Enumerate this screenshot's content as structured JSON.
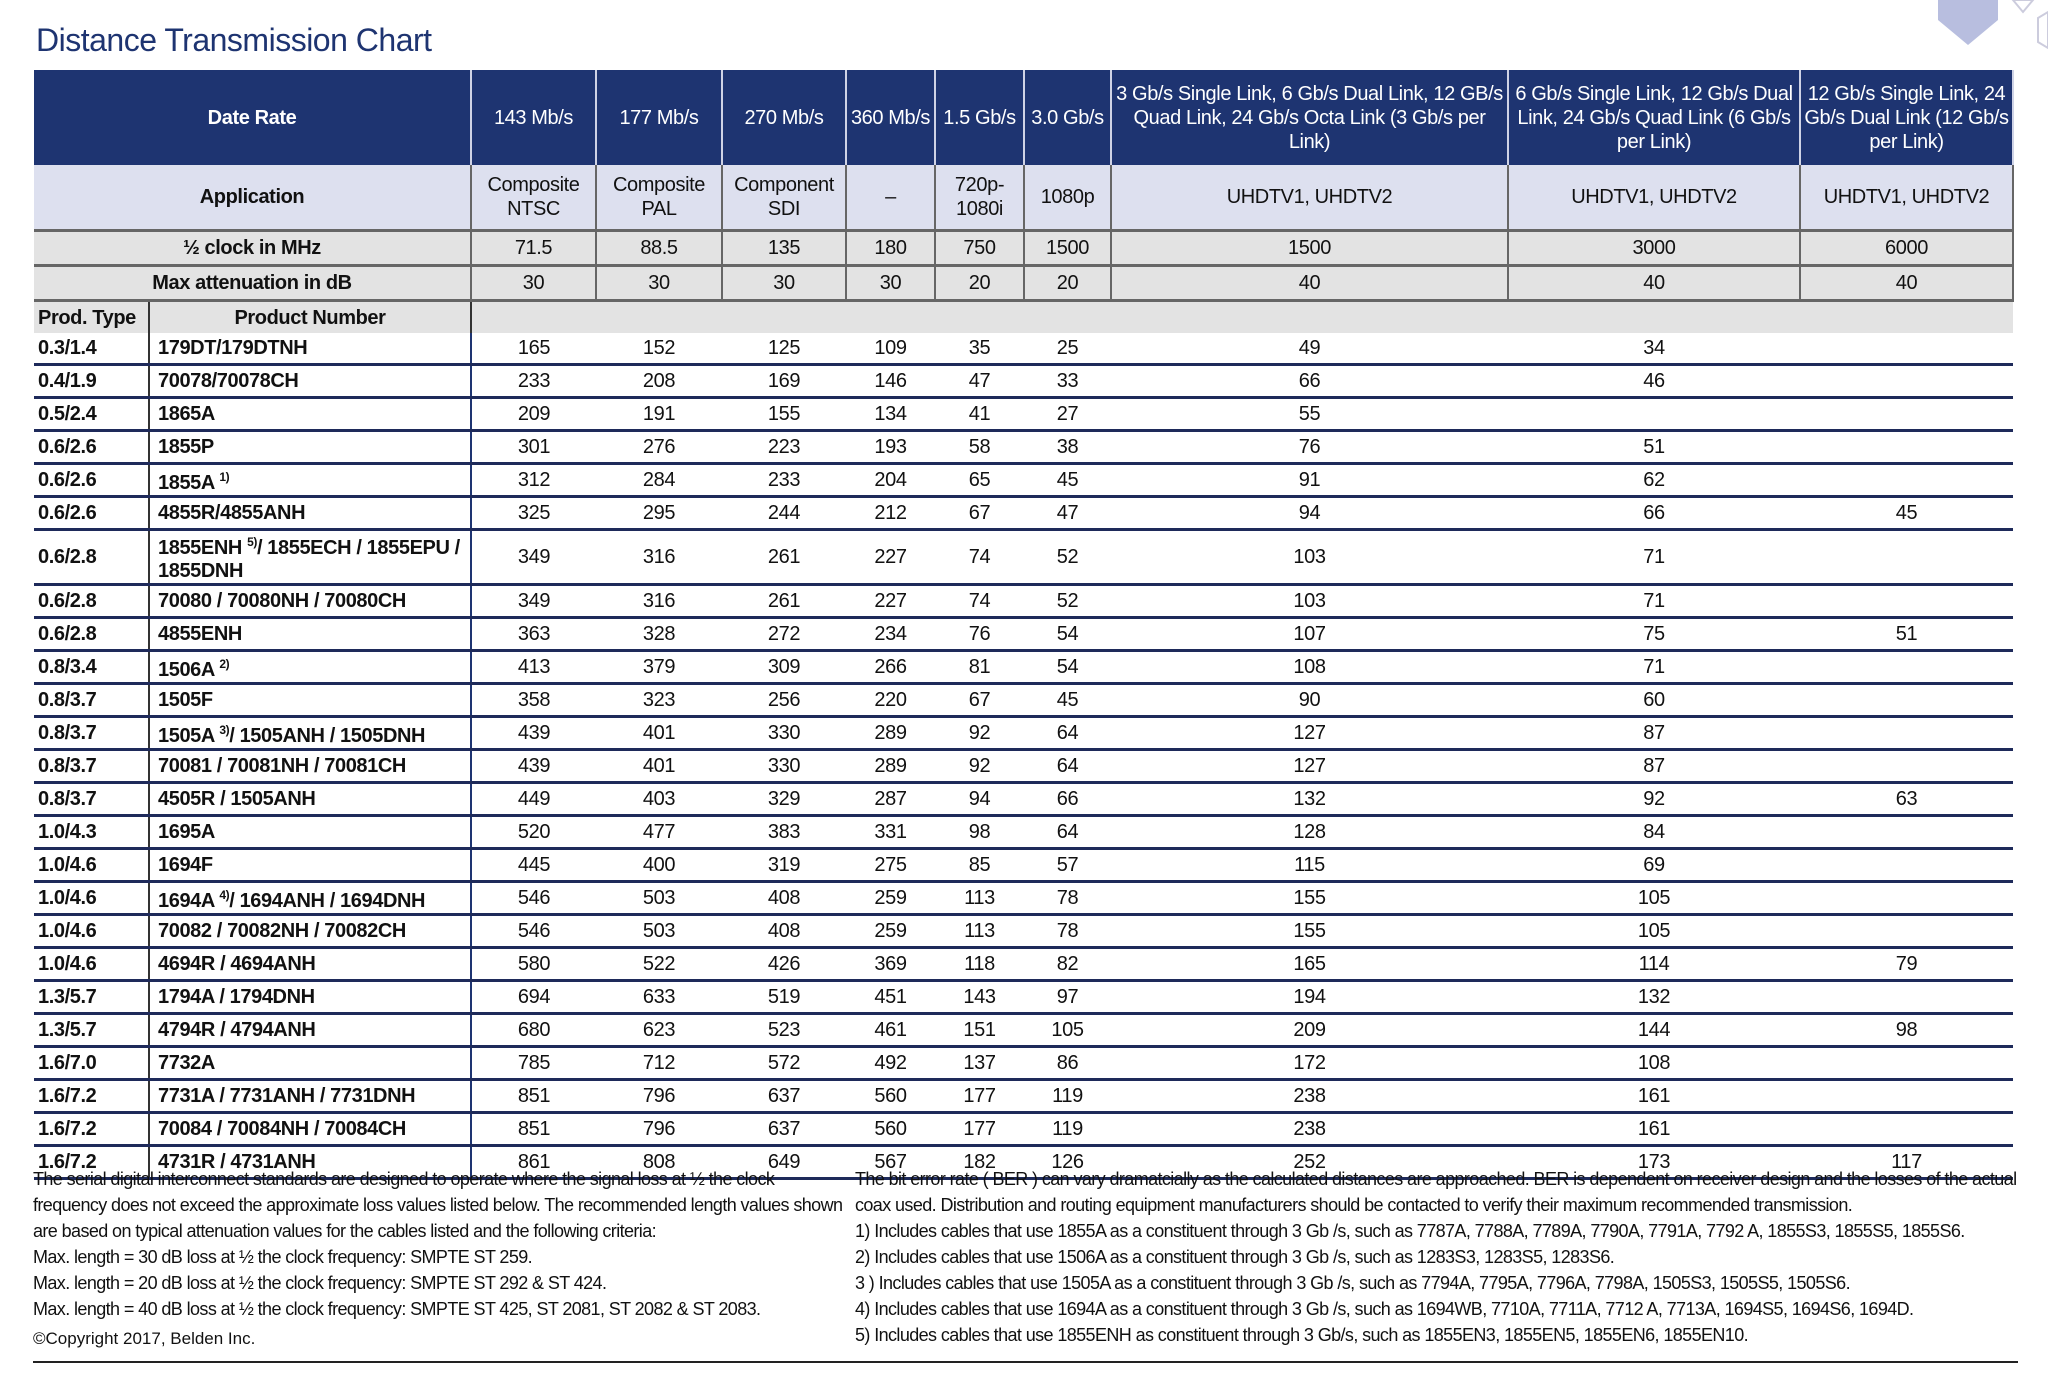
{
  "title": "Distance Transmission Chart",
  "colors": {
    "header_navy": "#1e3471",
    "application_row": "#dde0ef",
    "gray_row": "#e3e3e3"
  },
  "header": {
    "date_rate_label": "Date Rate",
    "rates": [
      "143 Mb/s",
      "177 Mb/s",
      "270 Mb/s",
      "360 Mb/s",
      "1.5 Gb/s",
      "3.0 Gb/s",
      "3 Gb/s Single Link, 6 Gb/s Dual Link, 12 GB/s Quad Link, 24 Gb/s Octa Link (3 Gb/s per Link)",
      "6 Gb/s Single Link, 12 Gb/s Dual Link, 24 Gb/s Quad Link (6 Gb/s per Link)",
      "12 Gb/s Single Link, 24 Gb/s Dual Link (12 Gb/s per Link)"
    ],
    "application_label": "Application",
    "applications": [
      "Composite NTSC",
      "Composite PAL",
      "Component SDI",
      "–",
      "720p-1080i",
      "1080p",
      "UHDTV1, UHDTV2",
      "UHDTV1, UHDTV2",
      "UHDTV1, UHDTV2"
    ],
    "clock_label": "½ clock in MHz",
    "clocks": [
      "71.5",
      "88.5",
      "135",
      "180",
      "750",
      "1500",
      "1500",
      "3000",
      "6000"
    ],
    "attenuation_label": "Max attenuation in dB",
    "attenuations": [
      "30",
      "30",
      "30",
      "30",
      "20",
      "20",
      "40",
      "40",
      "40"
    ],
    "prod_type_label": "Prod. Type",
    "product_number_label": "Product Number"
  },
  "rows": [
    {
      "type": "0.3/1.4",
      "product": "179DT/179DTNH",
      "note": "",
      "product_rest": "",
      "values": [
        "165",
        "152",
        "125",
        "109",
        "35",
        "25",
        "49",
        "34",
        ""
      ]
    },
    {
      "type": "0.4/1.9",
      "product": "70078/70078CH",
      "note": "",
      "product_rest": "",
      "values": [
        "233",
        "208",
        "169",
        "146",
        "47",
        "33",
        "66",
        "46",
        ""
      ]
    },
    {
      "type": "0.5/2.4",
      "product": "1865A",
      "note": "",
      "product_rest": "",
      "values": [
        "209",
        "191",
        "155",
        "134",
        "41",
        "27",
        "55",
        "",
        ""
      ]
    },
    {
      "type": "0.6/2.6",
      "product": "1855P",
      "note": "",
      "product_rest": "",
      "values": [
        "301",
        "276",
        "223",
        "193",
        "58",
        "38",
        "76",
        "51",
        ""
      ]
    },
    {
      "type": "0.6/2.6",
      "product": "1855A",
      "note": "1)",
      "product_rest": "",
      "values": [
        "312",
        "284",
        "233",
        "204",
        "65",
        "45",
        "91",
        "62",
        ""
      ]
    },
    {
      "type": "0.6/2.6",
      "product": "4855R/4855ANH",
      "note": "",
      "product_rest": "",
      "values": [
        "325",
        "295",
        "244",
        "212",
        "67",
        "47",
        "94",
        "66",
        "45"
      ]
    },
    {
      "type": "0.6/2.8",
      "product": "1855ENH",
      "note": "5)",
      "product_rest": "/ 1855ECH / 1855EPU / 1855DNH",
      "tall": true,
      "values": [
        "349",
        "316",
        "261",
        "227",
        "74",
        "52",
        "103",
        "71",
        ""
      ]
    },
    {
      "type": "0.6/2.8",
      "product": "70080 / 70080NH / 70080CH",
      "note": "",
      "product_rest": "",
      "values": [
        "349",
        "316",
        "261",
        "227",
        "74",
        "52",
        "103",
        "71",
        ""
      ]
    },
    {
      "type": "0.6/2.8",
      "product": "4855ENH",
      "note": "",
      "product_rest": "",
      "values": [
        "363",
        "328",
        "272",
        "234",
        "76",
        "54",
        "107",
        "75",
        "51"
      ]
    },
    {
      "type": "0.8/3.4",
      "product": "1506A",
      "note": "2)",
      "product_rest": "",
      "values": [
        "413",
        "379",
        "309",
        "266",
        "81",
        "54",
        "108",
        "71",
        ""
      ]
    },
    {
      "type": "0.8/3.7",
      "product": "1505F",
      "note": "",
      "product_rest": "",
      "values": [
        "358",
        "323",
        "256",
        "220",
        "67",
        "45",
        "90",
        "60",
        ""
      ]
    },
    {
      "type": "0.8/3.7",
      "product": "1505A",
      "note": "3)",
      "product_rest": "/ 1505ANH / 1505DNH",
      "values": [
        "439",
        "401",
        "330",
        "289",
        "92",
        "64",
        "127",
        "87",
        ""
      ]
    },
    {
      "type": "0.8/3.7",
      "product": "70081 / 70081NH / 70081CH",
      "note": "",
      "product_rest": "",
      "values": [
        "439",
        "401",
        "330",
        "289",
        "92",
        "64",
        "127",
        "87",
        ""
      ]
    },
    {
      "type": "0.8/3.7",
      "product": "4505R / 1505ANH",
      "note": "",
      "product_rest": "",
      "values": [
        "449",
        "403",
        "329",
        "287",
        "94",
        "66",
        "132",
        "92",
        "63"
      ]
    },
    {
      "type": "1.0/4.3",
      "product": "1695A",
      "note": "",
      "product_rest": "",
      "values": [
        "520",
        "477",
        "383",
        "331",
        "98",
        "64",
        "128",
        "84",
        ""
      ]
    },
    {
      "type": "1.0/4.6",
      "product": "1694F",
      "note": "",
      "product_rest": "",
      "values": [
        "445",
        "400",
        "319",
        "275",
        "85",
        "57",
        "115",
        "69",
        ""
      ]
    },
    {
      "type": "1.0/4.6",
      "product": "1694A",
      "note": "4)",
      "product_rest": "/ 1694ANH / 1694DNH",
      "values": [
        "546",
        "503",
        "408",
        "259",
        "113",
        "78",
        "155",
        "105",
        ""
      ]
    },
    {
      "type": "1.0/4.6",
      "product": "70082 / 70082NH / 70082CH",
      "note": "",
      "product_rest": "",
      "values": [
        "546",
        "503",
        "408",
        "259",
        "113",
        "78",
        "155",
        "105",
        ""
      ]
    },
    {
      "type": "1.0/4.6",
      "product": "4694R / 4694ANH",
      "note": "",
      "product_rest": "",
      "values": [
        "580",
        "522",
        "426",
        "369",
        "118",
        "82",
        "165",
        "114",
        "79"
      ]
    },
    {
      "type": "1.3/5.7",
      "product": "1794A / 1794DNH",
      "note": "",
      "product_rest": "",
      "values": [
        "694",
        "633",
        "519",
        "451",
        "143",
        "97",
        "194",
        "132",
        ""
      ]
    },
    {
      "type": "1.3/5.7",
      "product": "4794R / 4794ANH",
      "note": "",
      "product_rest": "",
      "values": [
        "680",
        "623",
        "523",
        "461",
        "151",
        "105",
        "209",
        "144",
        "98"
      ]
    },
    {
      "type": "1.6/7.0",
      "product": "7732A",
      "note": "",
      "product_rest": "",
      "values": [
        "785",
        "712",
        "572",
        "492",
        "137",
        "86",
        "172",
        "108",
        ""
      ]
    },
    {
      "type": "1.6/7.2",
      "product": "7731A / 7731ANH / 7731DNH",
      "note": "",
      "product_rest": "",
      "values": [
        "851",
        "796",
        "637",
        "560",
        "177",
        "119",
        "238",
        "161",
        ""
      ]
    },
    {
      "type": "1.6/7.2",
      "product": "70084 / 70084NH / 70084CH",
      "note": "",
      "product_rest": "",
      "values": [
        "851",
        "796",
        "637",
        "560",
        "177",
        "119",
        "238",
        "161",
        ""
      ]
    },
    {
      "type": "1.6/7.2",
      "product": "4731R / 4731ANH",
      "note": "",
      "product_rest": "",
      "values": [
        "861",
        "808",
        "649",
        "567",
        "182",
        "126",
        "252",
        "173",
        "117"
      ]
    }
  ],
  "notes_left": [
    "The serial digital interconnect standards are designed to operate where the signal loss at ½ the clock frequency does not exceed the approximate loss values listed below. The recommended length values shown are based on typical attenuation values for the cables listed and the following criteria:",
    "Max. length = 30 dB loss at ½ the clock frequency: SMPTE ST 259.",
    "Max. length = 20 dB loss at ½ the clock frequency: SMPTE ST 292 & ST 424.",
    "Max. length = 40 dB loss at ½ the clock frequency: SMPTE ST 425, ST 2081, ST 2082 & ST 2083."
  ],
  "copyright": "©Copyright 2017, Belden Inc.",
  "notes_right": [
    "The bit error rate ( BER ) can vary dramatcially as the calculated distances are approached. BER is dependent on receiver design and the losses of the actual coax used. Distribution and routing equipment manufacturers should be contacted to verify their maximum recommended transmission.",
    "1) Includes cables that use 1855A as a constituent through 3 Gb /s, such as 7787A, 7788A, 7789A, 7790A, 7791A, 7792 A, 1855S3, 1855S5, 1855S6.",
    "2) Includes cables that use 1506A as a constituent through 3 Gb /s, such as 1283S3, 1283S5, 1283S6.",
    "3 ) Includes cables that use 1505A as a constituent through 3 Gb /s, such as 7794A, 7795A, 7796A, 7798A, 1505S3, 1505S5, 1505S6.",
    "4) Includes cables that use 1694A as a constituent through 3 Gb /s, such as 1694WB, 7710A, 7711A, 7712 A, 7713A, 1694S5, 1694S6, 1694D.",
    "5) Includes cables that use 1855ENH as constituent through 3 Gb/s, such as 1855EN3, 1855EN5, 1855EN6, 1855EN10."
  ]
}
